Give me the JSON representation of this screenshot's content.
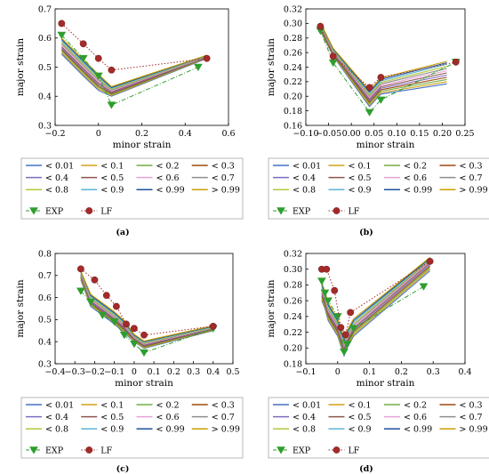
{
  "panels": [
    {
      "id": "a",
      "label": "(a)",
      "chart_data": {
        "type": "line",
        "xlabel": "minor strain",
        "ylabel": "major strain",
        "xlim": [
          -0.2,
          0.6
        ],
        "ylim": [
          0.3,
          0.7
        ],
        "xticks": [
          -0.2,
          0,
          0.2,
          0.4,
          0.6
        ],
        "yticks": [
          0.3,
          0.4,
          0.5,
          0.6,
          0.7
        ],
        "xtick_labels": [
          "−0.2",
          "0",
          "0.2",
          "0.4",
          "0.6"
        ],
        "ytick_labels": [
          "0.3",
          "0.4",
          "0.5",
          "0.6",
          "0.7"
        ],
        "series_x": [
          -0.17,
          -0.07,
          0.0,
          0.06,
          0.5
        ],
        "series": [
          {
            "name": "< 0.01",
            "values": [
              0.545,
              0.47,
              0.42,
              0.4,
              0.53
            ]
          },
          {
            "name": "< 0.1",
            "values": [
              0.55,
              0.475,
              0.425,
              0.403,
              0.531
            ]
          },
          {
            "name": "< 0.2",
            "values": [
              0.555,
              0.48,
              0.43,
              0.406,
              0.532
            ]
          },
          {
            "name": "< 0.3",
            "values": [
              0.56,
              0.485,
              0.435,
              0.409,
              0.533
            ]
          },
          {
            "name": "< 0.4",
            "values": [
              0.565,
              0.49,
              0.44,
              0.412,
              0.534
            ]
          },
          {
            "name": "< 0.5",
            "values": [
              0.57,
              0.495,
              0.445,
              0.415,
              0.535
            ]
          },
          {
            "name": "< 0.6",
            "values": [
              0.575,
              0.5,
              0.45,
              0.418,
              0.536
            ]
          },
          {
            "name": "< 0.7",
            "values": [
              0.58,
              0.505,
              0.455,
              0.421,
              0.537
            ]
          },
          {
            "name": "< 0.8",
            "values": [
              0.585,
              0.51,
              0.46,
              0.424,
              0.538
            ]
          },
          {
            "name": "< 0.9",
            "values": [
              0.59,
              0.515,
              0.465,
              0.427,
              0.539
            ]
          },
          {
            "name": "< 0.99",
            "values": [
              0.595,
              0.52,
              0.47,
              0.43,
              0.54
            ]
          },
          {
            "name": "> 0.99",
            "values": [
              0.6,
              0.525,
              0.475,
              0.433,
              0.541
            ]
          }
        ],
        "exp": {
          "name": "EXP",
          "x": [
            -0.17,
            -0.07,
            0.0,
            0.06,
            0.46
          ],
          "y": [
            0.61,
            0.53,
            0.47,
            0.37,
            0.5
          ]
        },
        "lf": {
          "name": "LF",
          "x": [
            -0.17,
            -0.07,
            0.0,
            0.06,
            0.5
          ],
          "y": [
            0.65,
            0.58,
            0.53,
            0.49,
            0.53
          ]
        }
      }
    },
    {
      "id": "b",
      "label": "(b)",
      "chart_data": {
        "type": "line",
        "xlabel": "minor strain",
        "ylabel": "major strain",
        "xlim": [
          -0.1,
          0.25
        ],
        "ylim": [
          0.16,
          0.32
        ],
        "xticks": [
          -0.1,
          -0.05,
          0,
          0.05,
          0.1,
          0.15,
          0.2,
          0.25
        ],
        "yticks": [
          0.16,
          0.18,
          0.2,
          0.22,
          0.24,
          0.26,
          0.28,
          0.3,
          0.32
        ],
        "xtick_labels": [
          "−0.10",
          "−0.05",
          "0.00",
          "0.05",
          "0.10",
          "0.15",
          "0.20",
          "0.25"
        ],
        "ytick_labels": [
          "0.16",
          "0.18",
          "0.20",
          "0.22",
          "0.24",
          "0.26",
          "0.28",
          "0.30",
          "0.32"
        ],
        "series_x": [
          -0.068,
          -0.04,
          0.04,
          0.065,
          0.21
        ],
        "series": [
          {
            "name": "< 0.01",
            "values": [
              0.29,
              0.255,
              0.186,
              0.203,
              0.217
            ]
          },
          {
            "name": "< 0.1",
            "values": [
              0.291,
              0.256,
              0.188,
              0.205,
              0.22
            ]
          },
          {
            "name": "< 0.2",
            "values": [
              0.292,
              0.257,
              0.19,
              0.207,
              0.223
            ]
          },
          {
            "name": "< 0.3",
            "values": [
              0.293,
              0.258,
              0.192,
              0.209,
              0.226
            ]
          },
          {
            "name": "< 0.4",
            "values": [
              0.294,
              0.259,
              0.194,
              0.211,
              0.229
            ]
          },
          {
            "name": "< 0.5",
            "values": [
              0.295,
              0.26,
              0.196,
              0.213,
              0.232
            ]
          },
          {
            "name": "< 0.6",
            "values": [
              0.296,
              0.261,
              0.198,
              0.215,
              0.235
            ]
          },
          {
            "name": "< 0.7",
            "values": [
              0.297,
              0.262,
              0.2,
              0.217,
              0.238
            ]
          },
          {
            "name": "< 0.8",
            "values": [
              0.298,
              0.263,
              0.202,
              0.219,
              0.241
            ]
          },
          {
            "name": "< 0.9",
            "values": [
              0.299,
              0.264,
              0.204,
              0.221,
              0.244
            ]
          },
          {
            "name": "< 0.99",
            "values": [
              0.3,
              0.265,
              0.206,
              0.223,
              0.246
            ]
          },
          {
            "name": "> 0.99",
            "values": [
              0.301,
              0.266,
              0.208,
              0.225,
              0.248
            ]
          }
        ],
        "exp": {
          "name": "EXP",
          "x": [
            -0.068,
            -0.04,
            0.04,
            0.065,
            0.23
          ],
          "y": [
            0.29,
            0.246,
            0.178,
            0.195,
            0.247
          ]
        },
        "lf": {
          "name": "LF",
          "x": [
            -0.068,
            -0.04,
            0.04,
            0.065,
            0.23
          ],
          "y": [
            0.296,
            0.255,
            0.212,
            0.226,
            0.247
          ]
        }
      }
    },
    {
      "id": "c",
      "label": "(c)",
      "chart_data": {
        "type": "line",
        "xlabel": "minor strain",
        "ylabel": "major strain",
        "xlim": [
          -0.4,
          0.5
        ],
        "ylim": [
          0.3,
          0.8
        ],
        "xticks": [
          -0.4,
          -0.3,
          -0.2,
          -0.1,
          0,
          0.1,
          0.2,
          0.3,
          0.4,
          0.5
        ],
        "yticks": [
          0.3,
          0.4,
          0.5,
          0.6,
          0.7,
          0.8
        ],
        "xtick_labels": [
          "−0.4",
          "−0.3",
          "−0.2",
          "−0.1",
          "0",
          "0.1",
          "0.2",
          "0.3",
          "0.4",
          "0.5"
        ],
        "ytick_labels": [
          "0.3",
          "0.4",
          "0.5",
          "0.6",
          "0.7",
          "0.8"
        ],
        "series_x": [
          -0.27,
          -0.22,
          -0.16,
          -0.1,
          -0.05,
          0.0,
          0.05,
          0.4
        ],
        "series": [
          {
            "name": "< 0.01",
            "values": [
              0.68,
              0.56,
              0.52,
              0.48,
              0.44,
              0.4,
              0.37,
              0.45
            ]
          },
          {
            "name": "< 0.1",
            "values": [
              0.685,
              0.565,
              0.525,
              0.485,
              0.445,
              0.403,
              0.373,
              0.452
            ]
          },
          {
            "name": "< 0.2",
            "values": [
              0.69,
              0.57,
              0.53,
              0.49,
              0.45,
              0.406,
              0.376,
              0.454
            ]
          },
          {
            "name": "< 0.3",
            "values": [
              0.695,
              0.575,
              0.535,
              0.495,
              0.455,
              0.409,
              0.379,
              0.456
            ]
          },
          {
            "name": "< 0.4",
            "values": [
              0.7,
              0.58,
              0.54,
              0.5,
              0.46,
              0.412,
              0.382,
              0.458
            ]
          },
          {
            "name": "< 0.5",
            "values": [
              0.703,
              0.585,
              0.545,
              0.505,
              0.465,
              0.415,
              0.385,
              0.46
            ]
          },
          {
            "name": "< 0.6",
            "values": [
              0.706,
              0.59,
              0.55,
              0.51,
              0.47,
              0.418,
              0.388,
              0.462
            ]
          },
          {
            "name": "< 0.7",
            "values": [
              0.709,
              0.595,
              0.555,
              0.515,
              0.475,
              0.421,
              0.391,
              0.464
            ]
          },
          {
            "name": "< 0.8",
            "values": [
              0.712,
              0.6,
              0.56,
              0.52,
              0.48,
              0.424,
              0.394,
              0.466
            ]
          },
          {
            "name": "< 0.9",
            "values": [
              0.715,
              0.605,
              0.565,
              0.525,
              0.485,
              0.427,
              0.397,
              0.468
            ]
          },
          {
            "name": "< 0.99",
            "values": [
              0.718,
              0.61,
              0.57,
              0.53,
              0.49,
              0.43,
              0.4,
              0.47
            ]
          },
          {
            "name": "> 0.99",
            "values": [
              0.72,
              0.615,
              0.575,
              0.535,
              0.495,
              0.433,
              0.403,
              0.472
            ]
          }
        ],
        "exp": {
          "name": "EXP",
          "x": [
            -0.27,
            -0.22,
            -0.16,
            -0.1,
            -0.05,
            0.0,
            0.05,
            0.4
          ],
          "y": [
            0.63,
            0.58,
            0.52,
            0.49,
            0.43,
            0.39,
            0.35,
            0.46
          ]
        },
        "lf": {
          "name": "LF",
          "x": [
            -0.27,
            -0.2,
            -0.14,
            -0.09,
            -0.04,
            0.0,
            0.05,
            0.4
          ],
          "y": [
            0.73,
            0.68,
            0.61,
            0.56,
            0.48,
            0.46,
            0.43,
            0.47
          ]
        }
      }
    },
    {
      "id": "d",
      "label": "(d)",
      "chart_data": {
        "type": "line",
        "xlabel": "minor strain",
        "ylabel": "major strain",
        "xlim": [
          -0.1,
          0.4
        ],
        "ylim": [
          0.18,
          0.32
        ],
        "xticks": [
          -0.1,
          0,
          0.1,
          0.2,
          0.3,
          0.4
        ],
        "yticks": [
          0.18,
          0.2,
          0.22,
          0.24,
          0.26,
          0.28,
          0.3,
          0.32
        ],
        "xtick_labels": [
          "−0.1",
          "0",
          "0.1",
          "0.2",
          "0.3",
          "0.4"
        ],
        "ytick_labels": [
          "0.18",
          "0.20",
          "0.22",
          "0.24",
          "0.26",
          "0.28",
          "0.30",
          "0.32"
        ],
        "series_x": [
          -0.05,
          -0.04,
          -0.03,
          0.0,
          0.02,
          0.03,
          0.05,
          0.29
        ],
        "series": [
          {
            "name": "< 0.01",
            "values": [
              0.26,
              0.25,
              0.235,
              0.215,
              0.19,
              0.2,
              0.215,
              0.298
            ]
          },
          {
            "name": "< 0.1",
            "values": [
              0.262,
              0.252,
              0.237,
              0.217,
              0.192,
              0.202,
              0.217,
              0.3
            ]
          },
          {
            "name": "< 0.2",
            "values": [
              0.264,
              0.254,
              0.239,
              0.219,
              0.194,
              0.204,
              0.219,
              0.302
            ]
          },
          {
            "name": "< 0.3",
            "values": [
              0.266,
              0.256,
              0.241,
              0.221,
              0.196,
              0.206,
              0.221,
              0.304
            ]
          },
          {
            "name": "< 0.4",
            "values": [
              0.268,
              0.258,
              0.243,
              0.223,
              0.198,
              0.208,
              0.223,
              0.306
            ]
          },
          {
            "name": "< 0.5",
            "values": [
              0.27,
              0.26,
              0.245,
              0.225,
              0.2,
              0.21,
              0.225,
              0.308
            ]
          },
          {
            "name": "< 0.6",
            "values": [
              0.272,
              0.262,
              0.247,
              0.227,
              0.202,
              0.212,
              0.227,
              0.31
            ]
          },
          {
            "name": "< 0.7",
            "values": [
              0.274,
              0.264,
              0.249,
              0.229,
              0.204,
              0.214,
              0.229,
              0.311
            ]
          },
          {
            "name": "< 0.8",
            "values": [
              0.276,
              0.266,
              0.251,
              0.231,
              0.206,
              0.216,
              0.231,
              0.312
            ]
          },
          {
            "name": "< 0.9",
            "values": [
              0.278,
              0.268,
              0.253,
              0.233,
              0.208,
              0.218,
              0.233,
              0.313
            ]
          },
          {
            "name": "< 0.99",
            "values": [
              0.28,
              0.27,
              0.255,
              0.235,
              0.21,
              0.22,
              0.235,
              0.314
            ]
          },
          {
            "name": "> 0.99",
            "values": [
              0.282,
              0.272,
              0.257,
              0.237,
              0.212,
              0.222,
              0.237,
              0.315
            ]
          }
        ],
        "exp": {
          "name": "EXP",
          "x": [
            -0.05,
            -0.04,
            -0.03,
            0.0,
            0.02,
            0.03,
            0.05,
            0.27
          ],
          "y": [
            0.285,
            0.27,
            0.26,
            0.24,
            0.195,
            0.205,
            0.225,
            0.278
          ]
        },
        "lf": {
          "name": "LF",
          "x": [
            -0.05,
            -0.035,
            -0.01,
            0.01,
            0.025,
            0.04,
            0.29
          ],
          "y": [
            0.3,
            0.3,
            0.273,
            0.226,
            0.217,
            0.245,
            0.31
          ]
        }
      }
    }
  ],
  "legend": {
    "entries": [
      "< 0.01",
      "< 0.1",
      "< 0.2",
      "< 0.3",
      "< 0.4",
      "< 0.5",
      "< 0.6",
      "< 0.7",
      "< 0.8",
      "< 0.9",
      "< 0.99",
      "> 0.99",
      "EXP",
      "LF"
    ]
  },
  "colors": {
    "series": [
      "#4472c4",
      "#d4a017",
      "#70ad47",
      "#9e480e",
      "#7f6bbf",
      "#8c564b",
      "#e9a3d8",
      "#8d8d8d",
      "#b5c93a",
      "#5ab4d6",
      "#1f4e9e",
      "#c8a000"
    ],
    "exp": "#2e9e2e",
    "lf": "#a52a2a"
  }
}
